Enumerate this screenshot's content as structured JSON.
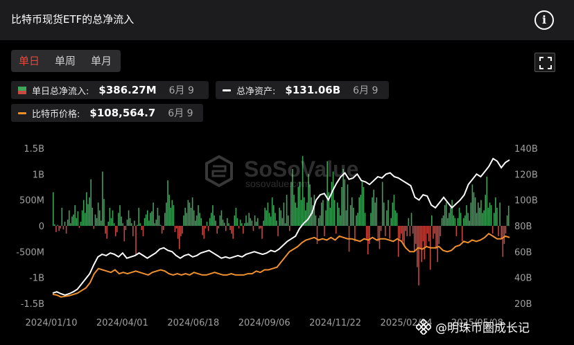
{
  "header": {
    "title": "比特币现货ETF的总净流入"
  },
  "tabs": [
    {
      "label": "单日",
      "active": true
    },
    {
      "label": "单周",
      "active": false
    },
    {
      "label": "单月",
      "active": false
    }
  ],
  "legend": {
    "daily_inflow": {
      "label": "单日总净流入:",
      "value": "$386.27M",
      "date": "6月 9"
    },
    "total_assets": {
      "label": "总净资产:",
      "value": "$131.06B",
      "date": "6月 9"
    },
    "btc_price": {
      "label": "比特币价格:",
      "value": "$108,564.7",
      "date": "6月 9"
    }
  },
  "watermark": {
    "name": "SoSoValue",
    "url": "sosovalue.com"
  },
  "footer": {
    "author": "@明珠币圈成长记"
  },
  "colors": {
    "inflow": "#3fa55b",
    "outflow": "#c94842",
    "assets_line": "#ffffff",
    "price_line": "#f0912e",
    "panel": "#1c1c1e"
  },
  "chart_data": {
    "type": "bar",
    "left_axis": {
      "ticks": [
        1.5,
        1,
        0.5,
        0,
        -0.5,
        -1,
        -1.5
      ],
      "tick_labels": [
        "1.5B",
        "1B",
        "500M",
        "0",
        "-500M",
        "-1B",
        "-1.5B"
      ],
      "range": [
        -1.5,
        1.5
      ],
      "unit": "B"
    },
    "right_axis": {
      "ticks": [
        140,
        120,
        100,
        80,
        60,
        40,
        20
      ],
      "tick_labels": [
        "140B",
        "120B",
        "100B",
        "80B",
        "60B",
        "40B",
        "20B"
      ],
      "range": [
        20,
        140
      ],
      "unit": "B"
    },
    "x_tick_labels": [
      "2024/01/10",
      "2024/04/01",
      "2024/06/18",
      "2024/09/06",
      "2024/11/22",
      "2025/02/14",
      "2025/05/08"
    ],
    "x_range": [
      "2024-01-11",
      "2025-06-09"
    ],
    "series": [
      {
        "name": "单日总净流入",
        "kind": "bar",
        "axis": "left",
        "values": [
          0.65,
          0.03,
          -0.12,
          0.02,
          -0.1,
          -0.05,
          0.35,
          -0.07,
          0.08,
          -0.15,
          0.12,
          0.3,
          0.05,
          0.18,
          0.22,
          0.4,
          0.15,
          0.28,
          -0.04,
          0.08,
          0.3,
          0.5,
          0.25,
          0.65,
          0.42,
          0.55,
          0.9,
          0.35,
          -0.06,
          0.22,
          0.15,
          0.45,
          0.3,
          0.1,
          1.05,
          0.52,
          -0.15,
          -0.25,
          0.08,
          0.35,
          0.15,
          0.3,
          0.05,
          -0.2,
          -0.12,
          0.25,
          0.4,
          0.18,
          0.05,
          -0.3,
          -0.08,
          0.12,
          0.3,
          0.15,
          0.05,
          -0.2,
          0.1,
          -0.55,
          0.02,
          0.35,
          0.05,
          -0.08,
          -0.2,
          0.15,
          0.22,
          0.3,
          0.1,
          0.25,
          0.28,
          0.45,
          0.05,
          0.12,
          0.35,
          0.2,
          0.02,
          -0.15,
          -0.08,
          0.25,
          0.45,
          0.88,
          0.6,
          0.35,
          0.5,
          0.4,
          -0.12,
          -0.05,
          -0.25,
          -0.45,
          -0.2,
          -0.15,
          0.2,
          0.35,
          0.25,
          0.5,
          0.45,
          0.35,
          0.55,
          0.3,
          0.1,
          0.2,
          0.4,
          0.25,
          0.15,
          -0.18,
          -0.25,
          -0.05,
          0.08,
          -0.1,
          0.15,
          0.25,
          0.4,
          0.2,
          0.1,
          -0.15,
          -0.05,
          0.2,
          0.3,
          0.12,
          0.06,
          -0.1,
          0.15,
          0.05,
          -0.08,
          -0.15,
          -0.25,
          0.2,
          0.35,
          0.15,
          -0.05,
          0.12,
          0.05,
          -0.15,
          0.05,
          0.2,
          0.06,
          0.25,
          0.15,
          0.1,
          -0.1,
          0.2,
          0.08,
          0.15,
          -0.06,
          -0.05,
          -0.25,
          0.1,
          0.35,
          0.3,
          0.45,
          0.25,
          0.18,
          0.55,
          0.4,
          0.25,
          0.1,
          -0.2,
          0.35,
          0.3,
          0.15,
          0.45,
          0.05,
          0.6,
          0.2,
          -0.1,
          0.85,
          1.1,
          0.6,
          0.45,
          0.35,
          0.75,
          0.85,
          0.5,
          1.35,
          0.55,
          0.3,
          0.45,
          1.0,
          0.8,
          0.55,
          0.4,
          0.6,
          0.2,
          -0.35,
          0.15,
          0.2,
          0.45,
          0.5,
          -0.2,
          0.3,
          1.25,
          0.65,
          0.35,
          0.85,
          1.05,
          0.5,
          -0.15,
          0.45,
          0.35,
          0.2,
          0.75,
          1.1,
          0.9,
          0.3,
          0.8,
          -0.5,
          0.4,
          0.55,
          0.35,
          -0.3,
          0.2,
          0.25,
          0.55,
          0.6,
          0.85,
          0.75,
          0.25,
          -0.25,
          -0.55,
          -0.35,
          0.25,
          0.55,
          0.7,
          0.45,
          0.55,
          -0.3,
          -0.45,
          -0.1,
          0.85,
          0.45,
          -0.2,
          0.3,
          0.5,
          -0.25,
          0.15,
          0.45,
          0.6,
          0.3,
          0.25,
          -0.6,
          -0.25,
          -0.15,
          -0.3,
          -0.4,
          -0.1,
          -0.2,
          0.15,
          -0.2,
          0.25,
          -0.15,
          -0.5,
          -0.35,
          -0.8,
          -1.15,
          -0.45,
          -0.7,
          -0.3,
          -0.65,
          -0.4,
          -0.15,
          -0.3,
          -0.85,
          0.2,
          -0.25,
          -0.15,
          -0.45,
          -0.7,
          -0.35,
          -0.2,
          0.15,
          0.2,
          0.4,
          0.45,
          0.15,
          0.25,
          0.35,
          0.5,
          0.2,
          0.15,
          -0.2,
          0.15,
          0.35,
          0.25,
          -0.3,
          0.15,
          0.2,
          0.4,
          0.25,
          0.1,
          0.45,
          0.8,
          0.65,
          0.55,
          0.25,
          0.45,
          0.35,
          0.5,
          0.25,
          0.3,
          0.6,
          0.95,
          0.35,
          0.45,
          0.4,
          -0.15,
          0.25,
          0.55,
          0.35,
          -0.2,
          0.45,
          -0.25,
          -0.6,
          -0.35,
          -0.15,
          0.2,
          0.39
        ]
      },
      {
        "name": "总净资产",
        "kind": "line",
        "axis": "right",
        "values": [
          28,
          29,
          27.5,
          26.5,
          27.5,
          29,
          31,
          35,
          39,
          43,
          50,
          56,
          58,
          57,
          59,
          58,
          56,
          59,
          55,
          56,
          57,
          59,
          57,
          55,
          57,
          59,
          62,
          63,
          61,
          60,
          57,
          55,
          57,
          58,
          56,
          57,
          59,
          60,
          61,
          59,
          57,
          55,
          56,
          55,
          56,
          57,
          56,
          58,
          59,
          60,
          59,
          58,
          59,
          61,
          60,
          62,
          65,
          68,
          70,
          72,
          78,
          82,
          85,
          90,
          100,
          104,
          105,
          100,
          107,
          113,
          118,
          121,
          116,
          117,
          120,
          115,
          114,
          112,
          115,
          118,
          117,
          120,
          121,
          118,
          117,
          115,
          113,
          111,
          102,
          100,
          104,
          103,
          96,
          94,
          98,
          102,
          98,
          94,
          97,
          100,
          104,
          112,
          116,
          120,
          118,
          122,
          126,
          132,
          130,
          125,
          129,
          131
        ]
      },
      {
        "name": "比特币价格",
        "kind": "line",
        "axis": "right",
        "values": [
          27,
          26.5,
          25,
          25.5,
          26,
          27,
          28,
          30,
          32,
          36,
          43,
          47,
          46,
          45,
          44,
          46,
          43,
          44,
          43,
          44,
          45,
          44,
          43,
          42,
          44,
          45,
          46,
          45,
          43,
          42,
          43,
          42,
          43,
          42,
          44,
          43,
          42,
          42,
          43,
          44,
          43,
          42,
          42,
          43,
          42,
          42,
          42,
          43,
          43,
          45,
          44,
          46,
          46,
          47,
          48,
          52,
          56,
          60,
          62,
          64,
          67,
          69,
          70,
          71,
          69,
          70,
          69,
          71,
          69,
          72,
          71,
          70,
          70,
          69,
          68,
          70,
          69,
          71,
          69,
          70,
          70,
          69,
          68,
          70,
          68,
          63,
          60,
          60,
          63,
          62,
          64,
          63,
          63,
          64,
          61,
          60,
          61,
          64,
          65,
          68,
          67,
          69,
          68,
          69,
          71,
          74,
          72,
          70,
          70,
          72,
          71
        ]
      }
    ]
  }
}
